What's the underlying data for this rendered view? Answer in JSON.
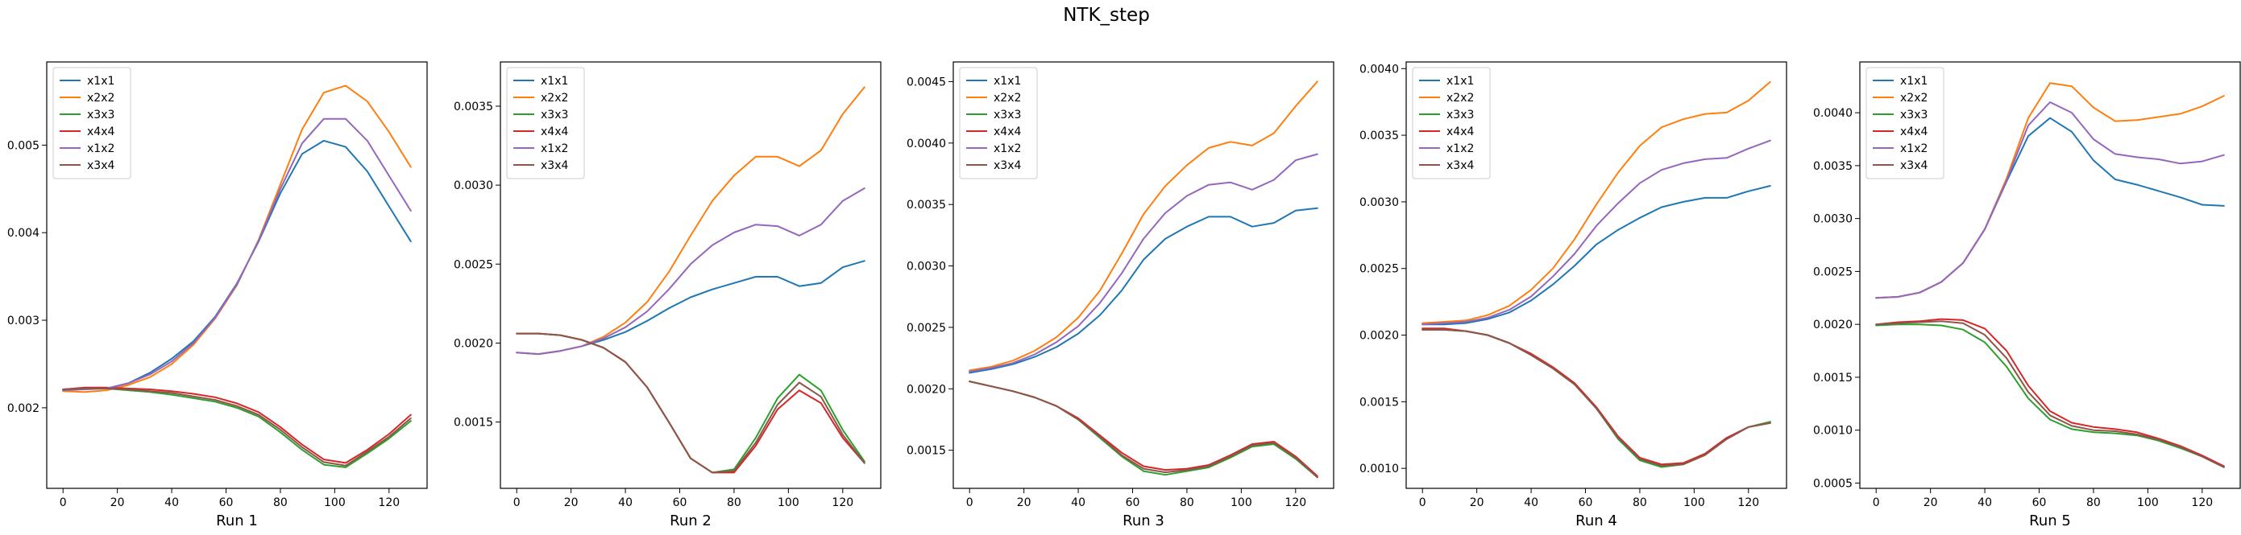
{
  "figure_title": "NTK_step",
  "series_colors": {
    "x1x1": "#1f77b4",
    "x2x2": "#ff7f0e",
    "x3x3": "#2ca02c",
    "x4x4": "#d62728",
    "x1x2": "#9467bd",
    "x3x4": "#8c564b"
  },
  "chart_data": [
    {
      "type": "line",
      "title": "",
      "xlabel": "Run 1",
      "ylabel": "",
      "legend_placement": "top-left",
      "grid": false,
      "xlim": [
        -6,
        134
      ],
      "ylim": [
        0.00108,
        0.00595
      ],
      "xticks": [
        0,
        20,
        40,
        60,
        80,
        100,
        120
      ],
      "yticks": [
        0.002,
        0.003,
        0.004,
        0.005
      ],
      "ytick_labels": [
        "0.002",
        "0.003",
        "0.004",
        "0.005"
      ],
      "x": [
        0,
        8,
        16,
        24,
        32,
        40,
        48,
        56,
        64,
        72,
        80,
        88,
        96,
        104,
        112,
        120,
        128
      ],
      "series": [
        {
          "name": "x1x1",
          "values": [
            0.0022,
            0.00222,
            0.00222,
            0.00228,
            0.0024,
            0.00256,
            0.00276,
            0.00304,
            0.00342,
            0.0039,
            0.00445,
            0.0049,
            0.00505,
            0.00498,
            0.0047,
            0.0043,
            0.0039
          ]
        },
        {
          "name": "x2x2",
          "values": [
            0.00219,
            0.00218,
            0.0022,
            0.00226,
            0.00235,
            0.0025,
            0.00272,
            0.00302,
            0.0034,
            0.00392,
            0.00455,
            0.00518,
            0.0056,
            0.00568,
            0.0055,
            0.00515,
            0.00475
          ]
        },
        {
          "name": "x3x3",
          "values": [
            0.00221,
            0.00222,
            0.00222,
            0.0022,
            0.00218,
            0.00215,
            0.00211,
            0.00207,
            0.002,
            0.0019,
            0.00172,
            0.00152,
            0.00135,
            0.00132,
            0.00148,
            0.00165,
            0.00185
          ]
        },
        {
          "name": "x4x4",
          "values": [
            0.00221,
            0.00223,
            0.00223,
            0.00222,
            0.00221,
            0.00219,
            0.00216,
            0.00212,
            0.00205,
            0.00195,
            0.00178,
            0.00158,
            0.00141,
            0.00137,
            0.00152,
            0.0017,
            0.00192
          ]
        },
        {
          "name": "x1x2",
          "values": [
            0.0022,
            0.00221,
            0.00222,
            0.00228,
            0.00238,
            0.00253,
            0.00274,
            0.00303,
            0.00341,
            0.00391,
            0.0045,
            0.00502,
            0.0053,
            0.0053,
            0.00505,
            0.00465,
            0.00425
          ]
        },
        {
          "name": "x3x4",
          "values": [
            0.00221,
            0.00222,
            0.00222,
            0.00221,
            0.00219,
            0.00217,
            0.00213,
            0.00209,
            0.00202,
            0.00192,
            0.00175,
            0.00155,
            0.00138,
            0.00134,
            0.0015,
            0.00167,
            0.00188
          ]
        }
      ]
    },
    {
      "type": "line",
      "title": "",
      "xlabel": "Run 2",
      "ylabel": "",
      "legend_placement": "top-left",
      "grid": false,
      "xlim": [
        -6,
        134
      ],
      "ylim": [
        0.00108,
        0.00378
      ],
      "xticks": [
        0,
        20,
        40,
        60,
        80,
        100,
        120
      ],
      "yticks": [
        0.0015,
        0.002,
        0.0025,
        0.003,
        0.0035
      ],
      "ytick_labels": [
        "0.0015",
        "0.0020",
        "0.0025",
        "0.0030",
        "0.0035"
      ],
      "x": [
        0,
        8,
        16,
        24,
        32,
        40,
        48,
        56,
        64,
        72,
        80,
        88,
        96,
        104,
        112,
        120,
        128
      ],
      "series": [
        {
          "name": "x1x1",
          "values": [
            0.00194,
            0.00193,
            0.00195,
            0.00198,
            0.00202,
            0.00207,
            0.00214,
            0.00222,
            0.00229,
            0.00234,
            0.00238,
            0.00242,
            0.00242,
            0.00236,
            0.00238,
            0.00248,
            0.00252
          ]
        },
        {
          "name": "x2x2",
          "values": [
            0.00194,
            0.00193,
            0.00195,
            0.00198,
            0.00204,
            0.00213,
            0.00226,
            0.00245,
            0.00268,
            0.0029,
            0.00306,
            0.00318,
            0.00318,
            0.00312,
            0.00322,
            0.00345,
            0.00362
          ]
        },
        {
          "name": "x3x3",
          "values": [
            0.00206,
            0.00206,
            0.00205,
            0.00202,
            0.00197,
            0.00188,
            0.00172,
            0.0015,
            0.00127,
            0.00118,
            0.0012,
            0.0014,
            0.00165,
            0.0018,
            0.0017,
            0.00145,
            0.00125
          ]
        },
        {
          "name": "x4x4",
          "values": [
            0.00206,
            0.00206,
            0.00205,
            0.00202,
            0.00197,
            0.00188,
            0.00172,
            0.0015,
            0.00127,
            0.00118,
            0.00118,
            0.00135,
            0.00158,
            0.0017,
            0.00162,
            0.0014,
            0.00124
          ]
        },
        {
          "name": "x1x2",
          "values": [
            0.00194,
            0.00193,
            0.00195,
            0.00198,
            0.00203,
            0.0021,
            0.0022,
            0.00234,
            0.0025,
            0.00262,
            0.0027,
            0.00275,
            0.00274,
            0.00268,
            0.00275,
            0.0029,
            0.00298
          ]
        },
        {
          "name": "x3x4",
          "values": [
            0.00206,
            0.00206,
            0.00205,
            0.00202,
            0.00197,
            0.00188,
            0.00172,
            0.0015,
            0.00127,
            0.00118,
            0.00119,
            0.00137,
            0.00161,
            0.00175,
            0.00166,
            0.00142,
            0.00124
          ]
        }
      ]
    },
    {
      "type": "line",
      "title": "",
      "xlabel": "Run 3",
      "ylabel": "",
      "legend_placement": "top-left",
      "grid": false,
      "xlim": [
        -6,
        134
      ],
      "ylim": [
        0.00119,
        0.00466
      ],
      "xticks": [
        0,
        20,
        40,
        60,
        80,
        100,
        120
      ],
      "yticks": [
        0.0015,
        0.002,
        0.0025,
        0.003,
        0.0035,
        0.004,
        0.0045
      ],
      "ytick_labels": [
        "0.0015",
        "0.0020",
        "0.0025",
        "0.0030",
        "0.0035",
        "0.0040",
        "0.0045"
      ],
      "x": [
        0,
        8,
        16,
        24,
        32,
        40,
        48,
        56,
        64,
        72,
        80,
        88,
        96,
        104,
        112,
        120,
        128
      ],
      "series": [
        {
          "name": "x1x1",
          "values": [
            0.00213,
            0.00216,
            0.0022,
            0.00226,
            0.00234,
            0.00245,
            0.0026,
            0.0028,
            0.00305,
            0.00322,
            0.00332,
            0.0034,
            0.0034,
            0.00332,
            0.00335,
            0.00345,
            0.00347
          ]
        },
        {
          "name": "x2x2",
          "values": [
            0.00215,
            0.00218,
            0.00223,
            0.00231,
            0.00242,
            0.00258,
            0.0028,
            0.0031,
            0.00342,
            0.00365,
            0.00382,
            0.00396,
            0.00401,
            0.00398,
            0.00408,
            0.0043,
            0.0045
          ]
        },
        {
          "name": "x3x3",
          "values": [
            0.00206,
            0.00202,
            0.00198,
            0.00193,
            0.00186,
            0.00175,
            0.0016,
            0.00145,
            0.00133,
            0.0013,
            0.00133,
            0.00136,
            0.00144,
            0.00153,
            0.00155,
            0.00143,
            0.00128
          ]
        },
        {
          "name": "x4x4",
          "values": [
            0.00206,
            0.00202,
            0.00198,
            0.00193,
            0.00186,
            0.00176,
            0.00162,
            0.00148,
            0.00137,
            0.00134,
            0.00135,
            0.00138,
            0.00146,
            0.00155,
            0.00157,
            0.00145,
            0.00129
          ]
        },
        {
          "name": "x1x2",
          "values": [
            0.00214,
            0.00217,
            0.00221,
            0.00228,
            0.00238,
            0.00251,
            0.0027,
            0.00294,
            0.00322,
            0.00343,
            0.00357,
            0.00366,
            0.00368,
            0.00362,
            0.0037,
            0.00386,
            0.00391
          ]
        },
        {
          "name": "x3x4",
          "values": [
            0.00206,
            0.00202,
            0.00198,
            0.00193,
            0.00186,
            0.00175,
            0.00161,
            0.00146,
            0.00135,
            0.00132,
            0.00134,
            0.00137,
            0.00145,
            0.00154,
            0.00156,
            0.00144,
            0.00128
          ]
        }
      ]
    },
    {
      "type": "line",
      "title": "",
      "xlabel": "Run 4",
      "ylabel": "",
      "legend_placement": "top-left",
      "grid": false,
      "xlim": [
        -6,
        134
      ],
      "ylim": [
        0.00085,
        0.00405
      ],
      "xticks": [
        0,
        20,
        40,
        60,
        80,
        100,
        120
      ],
      "yticks": [
        0.001,
        0.0015,
        0.002,
        0.0025,
        0.003,
        0.0035,
        0.004
      ],
      "ytick_labels": [
        "0.0010",
        "0.0015",
        "0.0020",
        "0.0025",
        "0.0030",
        "0.0035",
        "0.0040"
      ],
      "x": [
        0,
        8,
        16,
        24,
        32,
        40,
        48,
        56,
        64,
        72,
        80,
        88,
        96,
        104,
        112,
        120,
        128
      ],
      "series": [
        {
          "name": "x1x1",
          "values": [
            0.00208,
            0.00208,
            0.00209,
            0.00212,
            0.00217,
            0.00226,
            0.00238,
            0.00252,
            0.00268,
            0.00279,
            0.00288,
            0.00296,
            0.003,
            0.00303,
            0.00303,
            0.00308,
            0.00312
          ]
        },
        {
          "name": "x2x2",
          "values": [
            0.00209,
            0.0021,
            0.00211,
            0.00215,
            0.00222,
            0.00234,
            0.0025,
            0.00272,
            0.00298,
            0.00322,
            0.00342,
            0.00356,
            0.00362,
            0.00366,
            0.00367,
            0.00376,
            0.0039
          ]
        },
        {
          "name": "x3x3",
          "values": [
            0.00204,
            0.00204,
            0.00203,
            0.002,
            0.00194,
            0.00185,
            0.00175,
            0.00163,
            0.00145,
            0.00122,
            0.00106,
            0.00101,
            0.00103,
            0.0011,
            0.00122,
            0.00131,
            0.00135
          ]
        },
        {
          "name": "x4x4",
          "values": [
            0.00205,
            0.00205,
            0.00203,
            0.002,
            0.00194,
            0.00186,
            0.00176,
            0.00164,
            0.00146,
            0.00124,
            0.00108,
            0.00103,
            0.00104,
            0.00111,
            0.00123,
            0.00131,
            0.00134
          ]
        },
        {
          "name": "x1x2",
          "values": [
            0.00208,
            0.00209,
            0.0021,
            0.00213,
            0.00219,
            0.00229,
            0.00244,
            0.00261,
            0.00282,
            0.00299,
            0.00314,
            0.00324,
            0.00329,
            0.00332,
            0.00333,
            0.0034,
            0.00346
          ]
        },
        {
          "name": "x3x4",
          "values": [
            0.00204,
            0.00204,
            0.00203,
            0.002,
            0.00194,
            0.00185,
            0.00175,
            0.00163,
            0.00145,
            0.00123,
            0.00107,
            0.00102,
            0.00103,
            0.0011,
            0.00122,
            0.00131,
            0.00134
          ]
        }
      ]
    },
    {
      "type": "line",
      "title": "",
      "xlabel": "Run 5",
      "ylabel": "",
      "legend_placement": "top-left",
      "grid": false,
      "xlim": [
        -6,
        134
      ],
      "ylim": [
        0.00045,
        0.00448
      ],
      "xticks": [
        0,
        20,
        40,
        60,
        80,
        100,
        120
      ],
      "yticks": [
        0.0005,
        0.001,
        0.0015,
        0.002,
        0.0025,
        0.003,
        0.0035,
        0.004
      ],
      "ytick_labels": [
        "0.0005",
        "0.0010",
        "0.0015",
        "0.0020",
        "0.0025",
        "0.0030",
        "0.0035",
        "0.0040"
      ],
      "x": [
        0,
        8,
        16,
        24,
        32,
        40,
        48,
        56,
        64,
        72,
        80,
        88,
        96,
        104,
        112,
        120,
        128
      ],
      "series": [
        {
          "name": "x1x1",
          "values": [
            0.00225,
            0.00226,
            0.0023,
            0.0024,
            0.00258,
            0.0029,
            0.00335,
            0.00378,
            0.00395,
            0.00382,
            0.00355,
            0.00337,
            0.00332,
            0.00326,
            0.0032,
            0.00313,
            0.00312
          ]
        },
        {
          "name": "x2x2",
          "values": [
            0.00225,
            0.00226,
            0.0023,
            0.0024,
            0.00258,
            0.0029,
            0.00338,
            0.00395,
            0.00428,
            0.00425,
            0.00405,
            0.00392,
            0.00393,
            0.00396,
            0.00399,
            0.00406,
            0.00416
          ]
        },
        {
          "name": "x3x3",
          "values": [
            0.00199,
            0.002,
            0.002,
            0.00199,
            0.00195,
            0.00183,
            0.0016,
            0.0013,
            0.0011,
            0.00101,
            0.00098,
            0.00097,
            0.00095,
            0.0009,
            0.00083,
            0.00075,
            0.00065
          ]
        },
        {
          "name": "x4x4",
          "values": [
            0.002,
            0.00202,
            0.00203,
            0.00205,
            0.00204,
            0.00196,
            0.00175,
            0.00142,
            0.00118,
            0.00107,
            0.00103,
            0.00101,
            0.00098,
            0.00092,
            0.00085,
            0.00076,
            0.00066
          ]
        },
        {
          "name": "x1x2",
          "values": [
            0.00225,
            0.00226,
            0.0023,
            0.0024,
            0.00258,
            0.0029,
            0.00336,
            0.00388,
            0.0041,
            0.004,
            0.00375,
            0.00361,
            0.00358,
            0.00356,
            0.00352,
            0.00354,
            0.0036
          ]
        },
        {
          "name": "x3x4",
          "values": [
            0.002,
            0.00201,
            0.00202,
            0.00203,
            0.00201,
            0.0019,
            0.00168,
            0.00136,
            0.00114,
            0.00104,
            0.001,
            0.00099,
            0.00096,
            0.00091,
            0.00084,
            0.00075,
            0.00065
          ]
        }
      ]
    }
  ]
}
